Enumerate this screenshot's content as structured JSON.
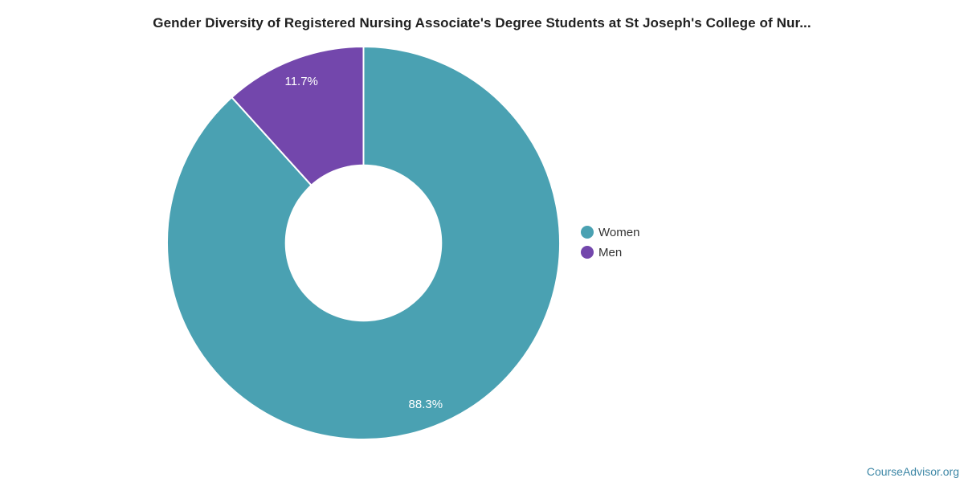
{
  "chart_data": {
    "type": "pie",
    "subtype": "donut",
    "title": "Gender Diversity of Registered Nursing Associate's Degree Students at St Joseph's College of Nur...",
    "series": [
      {
        "name": "Women",
        "value": 88.3,
        "label": "88.3%",
        "color": "#4AA1B2"
      },
      {
        "name": "Men",
        "value": 11.7,
        "label": "11.7%",
        "color": "#7347AC"
      }
    ],
    "total": 100,
    "start_angle_deg": 0,
    "direction": "clockwise",
    "inner_radius_ratio": 0.4,
    "slice_border_color": "#FFFFFF",
    "label_color": "#FFFFFF",
    "legend_position": "right-middle",
    "legend_text_color": "#333333"
  },
  "watermark": {
    "text": "CourseAdvisor.org",
    "color": "#3D87A6"
  }
}
